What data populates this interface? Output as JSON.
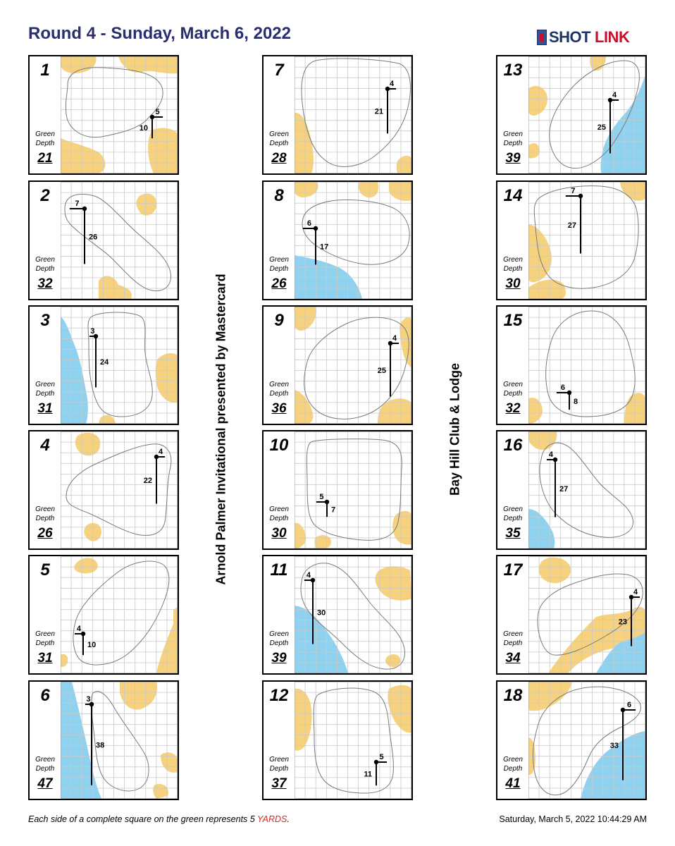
{
  "header": {
    "title": "Round 4 - Sunday, March 6, 2022",
    "logo_shot": "SHOT",
    "logo_link": "LINK"
  },
  "center_title": "Arnold Palmer Invitational presented by Mastercard",
  "course_name": "Bay Hill Club & Lodge",
  "green_depth_label": "Green Depth",
  "colors": {
    "bunker": "#f7d27e",
    "water": "#8fd2f0",
    "grid": "#c9c9c9",
    "green_outline": "#7a7a7a",
    "title": "#2b2e6e",
    "logo_blue": "#1c3468",
    "logo_red": "#c8102e",
    "footnote_highlight": "#d42b1e"
  },
  "holes": [
    {
      "number": "1",
      "depth": "21",
      "left": "5",
      "down": "10"
    },
    {
      "number": "2",
      "depth": "32",
      "left": "7",
      "down": "26"
    },
    {
      "number": "3",
      "depth": "31",
      "left": "3",
      "down": "24"
    },
    {
      "number": "4",
      "depth": "26",
      "left": "4",
      "down": "22"
    },
    {
      "number": "5",
      "depth": "31",
      "left": "4",
      "down": "10"
    },
    {
      "number": "6",
      "depth": "47",
      "left": "3",
      "down": "38"
    },
    {
      "number": "7",
      "depth": "28",
      "left": "4",
      "down": "21"
    },
    {
      "number": "8",
      "depth": "26",
      "left": "6",
      "down": "17"
    },
    {
      "number": "9",
      "depth": "36",
      "left": "4",
      "down": "25"
    },
    {
      "number": "10",
      "depth": "30",
      "left": "5",
      "down": "7"
    },
    {
      "number": "11",
      "depth": "39",
      "left": "4",
      "down": "30"
    },
    {
      "number": "12",
      "depth": "37",
      "left": "5",
      "down": "11"
    },
    {
      "number": "13",
      "depth": "39",
      "left": "4",
      "down": "25"
    },
    {
      "number": "14",
      "depth": "30",
      "left": "7",
      "down": "27"
    },
    {
      "number": "15",
      "depth": "32",
      "left": "6",
      "down": "8"
    },
    {
      "number": "16",
      "depth": "35",
      "left": "4",
      "down": "27"
    },
    {
      "number": "17",
      "depth": "34",
      "left": "4",
      "down": "23"
    },
    {
      "number": "18",
      "depth": "41",
      "left": "6",
      "down": "33"
    }
  ],
  "footer": {
    "note_prefix": "Each side of a complete square on the green represents 5 ",
    "note_unit": "YARDS",
    "note_suffix": ".",
    "timestamp": "Saturday, March 5, 2022 10:44:29 AM"
  }
}
